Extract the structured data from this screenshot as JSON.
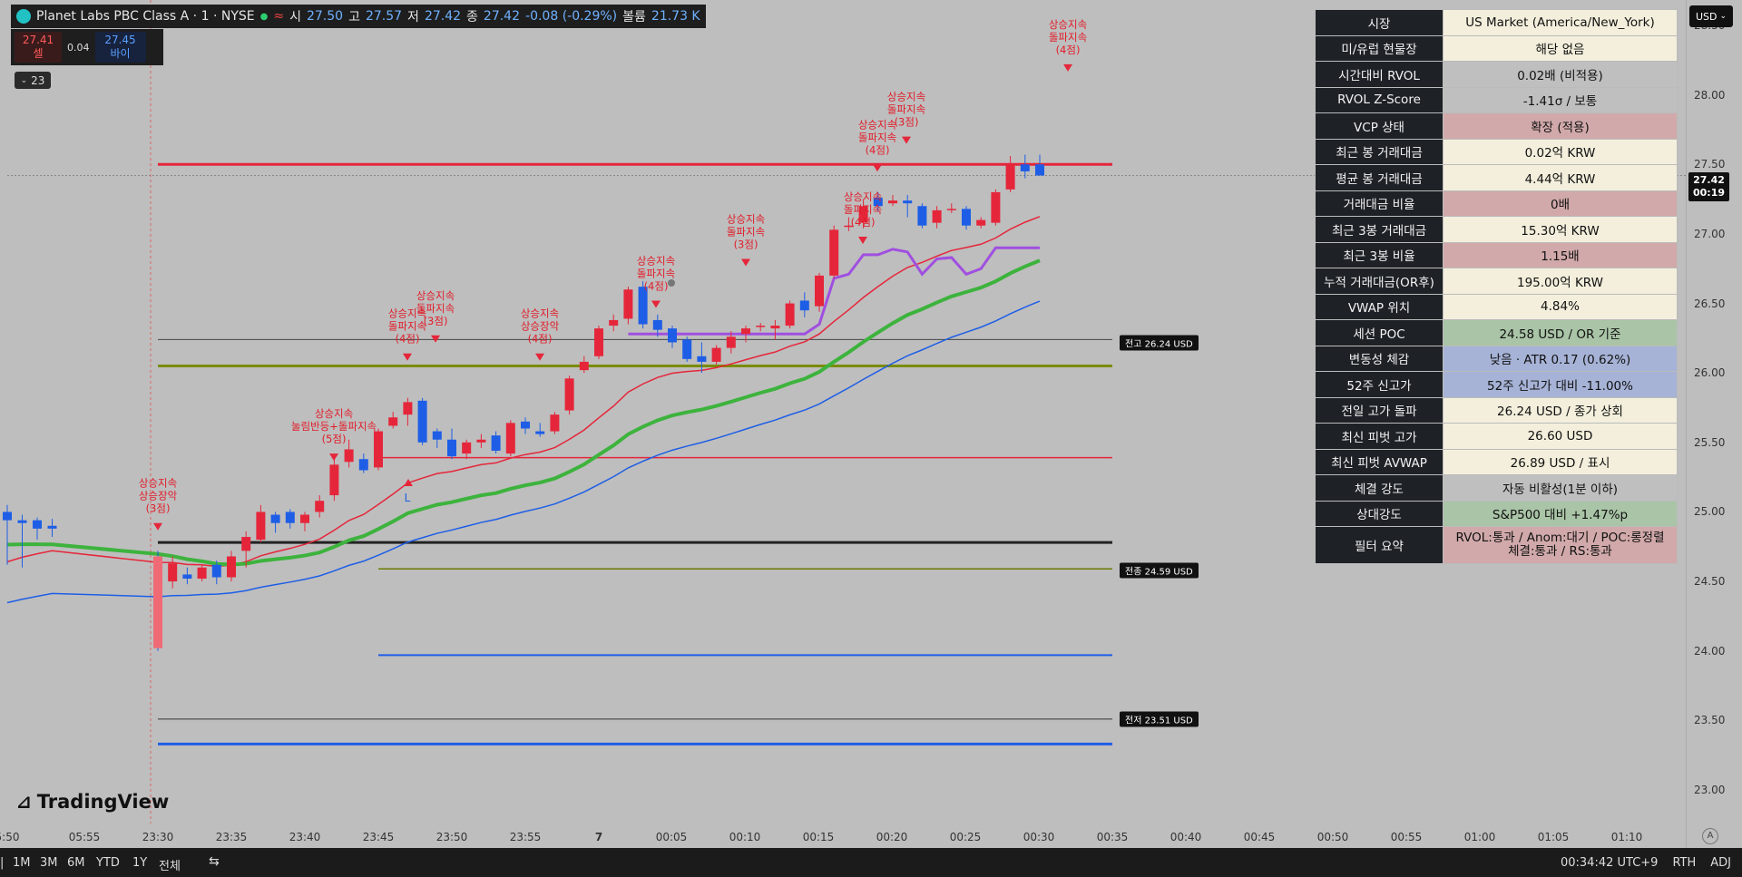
{
  "header": {
    "symbol": "Planet Labs PBC Class A · 1 · NYSE",
    "open_label": "시",
    "open": "27.50",
    "high_label": "고",
    "high": "27.57",
    "low_label": "저",
    "low": "27.42",
    "close_label": "종",
    "close": "27.42",
    "change": "-0.08 (-0.29%)",
    "volume_label": "볼륨",
    "volume": "21.73 K"
  },
  "trade": {
    "sell_price": "27.41",
    "sell_label": "셀",
    "spread": "0.04",
    "buy_price": "27.45",
    "buy_label": "바이"
  },
  "indicator_count": "23",
  "currency": "USD",
  "current_price": {
    "value": "27.42",
    "countdown": "00:19"
  },
  "price_axis": [
    "28.50",
    "28.00",
    "27.50",
    "27.00",
    "26.50",
    "26.00",
    "25.50",
    "25.00",
    "24.50",
    "24.00",
    "23.50",
    "23.00"
  ],
  "time_axis": [
    "5:50",
    "05:55",
    "23:30",
    "23:35",
    "23:40",
    "23:45",
    "23:50",
    "23:55",
    "7",
    "00:05",
    "00:10",
    "00:15",
    "00:20",
    "00:25",
    "00:30",
    "00:35",
    "00:40",
    "00:45",
    "00:50",
    "00:55",
    "01:00",
    "01:05",
    "01:10"
  ],
  "line_labels": {
    "prev_low": "전고 26.24 USD",
    "prev_close": "전종 24.59 USD",
    "prev_low2": "전저 23.51 USD"
  },
  "signals": [
    [
      "상승지속",
      "상승장악",
      "(3점)"
    ],
    [
      "상승지속",
      "눌림반등+돌파지속",
      "(5점)"
    ],
    [
      "상승지속",
      "돌파지속",
      "(4점)"
    ],
    [
      "상승지속",
      "돌파지속",
      "(3점)"
    ],
    [
      "상승지속",
      "상승장악",
      "(4점)"
    ],
    [
      "상승지속",
      "돌파지속",
      "(4점)"
    ],
    [
      "상승지속",
      "돌파지속",
      "(3점)"
    ],
    [
      "상승지속",
      "돌파지속",
      "(4점)"
    ],
    [
      "상승지속",
      "돌파지속",
      "(4점)"
    ],
    [
      "상승지속",
      "돌파지속",
      "(3점)"
    ],
    [
      "상승지속",
      "돌파지속",
      "(4점)"
    ]
  ],
  "signal_L": "L",
  "table": [
    {
      "k": "시장",
      "v": "US Market (America/New_York)",
      "c": "#f3efdc"
    },
    {
      "k": "미/유럽 현물장",
      "v": "해당 없음",
      "c": "#f3efdc"
    },
    {
      "k": "시간대비 RVOL",
      "v": "0.02배 (비적용)",
      "c": "#bfbfbf"
    },
    {
      "k": "RVOL Z-Score",
      "v": "-1.41σ / 보통",
      "c": "#bfbfbf"
    },
    {
      "k": "VCP 상태",
      "v": "확장 (적용)",
      "c": "#d1a9aa"
    },
    {
      "k": "최근 봉 거래대금",
      "v": "0.02억 KRW",
      "c": "#f3efdc"
    },
    {
      "k": "평균 봉 거래대금",
      "v": "4.44억 KRW",
      "c": "#f3efdc"
    },
    {
      "k": "거래대금 비율",
      "v": "0배",
      "c": "#d1a9aa"
    },
    {
      "k": "최근 3봉 거래대금",
      "v": "15.30억 KRW",
      "c": "#f3efdc"
    },
    {
      "k": "최근 3봉 비율",
      "v": "1.15배",
      "c": "#d1a9aa"
    },
    {
      "k": "누적 거래대금(OR후)",
      "v": "195.00억 KRW",
      "c": "#f3efdc"
    },
    {
      "k": "VWAP 위치",
      "v": "4.84%",
      "c": "#f3efdc"
    },
    {
      "k": "세션 POC",
      "v": "24.58 USD / OR 기준",
      "c": "#a9c4a6"
    },
    {
      "k": "변동성 체감",
      "v": "낮음 · ATR 0.17 (0.62%)",
      "c": "#a6b3d6"
    },
    {
      "k": "52주 신고가",
      "v": "52주 신고가 대비 -11.00%",
      "c": "#a6b3d6"
    },
    {
      "k": "전일 고가 돌파",
      "v": "26.24 USD / 종가 상회",
      "c": "#f3efdc"
    },
    {
      "k": "최신 피벗 고가",
      "v": "26.60 USD",
      "c": "#f3efdc"
    },
    {
      "k": "최신 피벗 AVWAP",
      "v": "26.89 USD / 표시",
      "c": "#f3efdc"
    },
    {
      "k": "체결 강도",
      "v": "자동 비활성(1분 이하)",
      "c": "#bfbfbf"
    },
    {
      "k": "상대강도",
      "v": "S&P500 대비 +1.47%p",
      "c": "#a9c4a6"
    }
  ],
  "filter_summary": {
    "k": "필터 요약",
    "v1": "RVOL:통과 / Anom:대기 / POC:롱정렬",
    "v2": "체결:통과 / RS:통과",
    "c": "#d1a9aa"
  },
  "tv_logo": "TradingView",
  "bottom_ranges": [
    "1M",
    "3M",
    "6M",
    "YTD",
    "1Y",
    "전체"
  ],
  "status": {
    "time": "00:34:42 UTC+9",
    "session": "RTH",
    "adj": "ADJ"
  },
  "candles": [
    [
      25.0,
      25.05,
      24.62,
      24.94
    ],
    [
      24.94,
      24.98,
      24.6,
      24.92
    ],
    [
      24.94,
      24.96,
      24.8,
      24.88
    ],
    [
      24.9,
      24.95,
      24.82,
      24.88
    ],
    [
      24.68,
      24.72,
      24.0,
      24.02
    ],
    [
      24.5,
      24.68,
      24.45,
      24.63
    ],
    [
      24.55,
      24.6,
      24.48,
      24.52
    ],
    [
      24.52,
      24.62,
      24.5,
      24.6
    ],
    [
      24.62,
      24.65,
      24.48,
      24.53
    ],
    [
      24.53,
      24.72,
      24.5,
      24.68
    ],
    [
      24.72,
      24.86,
      24.6,
      24.82
    ],
    [
      24.8,
      25.05,
      24.78,
      25.0
    ],
    [
      24.98,
      25.0,
      24.85,
      24.92
    ],
    [
      25.0,
      25.02,
      24.88,
      24.92
    ],
    [
      24.92,
      25.0,
      24.86,
      24.98
    ],
    [
      25.0,
      25.12,
      24.96,
      25.08
    ],
    [
      25.12,
      25.38,
      25.08,
      25.34
    ],
    [
      25.36,
      25.52,
      25.32,
      25.45
    ],
    [
      25.38,
      25.42,
      25.28,
      25.3
    ],
    [
      25.32,
      25.6,
      25.3,
      25.58
    ],
    [
      25.62,
      25.72,
      25.6,
      25.68
    ],
    [
      25.7,
      25.82,
      25.62,
      25.79
    ],
    [
      25.8,
      25.82,
      25.48,
      25.5
    ],
    [
      25.58,
      25.6,
      25.46,
      25.52
    ],
    [
      25.52,
      25.6,
      25.38,
      25.4
    ],
    [
      25.42,
      25.52,
      25.38,
      25.5
    ],
    [
      25.5,
      25.56,
      25.46,
      25.52
    ],
    [
      25.55,
      25.58,
      25.42,
      25.44
    ],
    [
      25.42,
      25.66,
      25.4,
      25.64
    ],
    [
      25.65,
      25.68,
      25.56,
      25.6
    ],
    [
      25.58,
      25.64,
      25.54,
      25.56
    ],
    [
      25.58,
      25.72,
      25.56,
      25.7
    ],
    [
      25.73,
      25.98,
      25.7,
      25.96
    ],
    [
      26.02,
      26.12,
      26.0,
      26.08
    ],
    [
      26.12,
      26.34,
      26.1,
      26.32
    ],
    [
      26.34,
      26.42,
      26.3,
      26.38
    ],
    [
      26.39,
      26.62,
      26.35,
      26.6
    ],
    [
      26.62,
      26.66,
      26.32,
      26.35
    ],
    [
      26.38,
      26.42,
      26.26,
      26.31
    ],
    [
      26.32,
      26.34,
      26.18,
      26.22
    ],
    [
      26.24,
      26.26,
      26.08,
      26.1
    ],
    [
      26.12,
      26.22,
      26.0,
      26.08
    ],
    [
      26.08,
      26.2,
      26.06,
      26.18
    ],
    [
      26.18,
      26.3,
      26.14,
      26.26
    ],
    [
      26.28,
      26.34,
      26.22,
      26.32
    ],
    [
      26.33,
      26.36,
      26.3,
      26.34
    ],
    [
      26.32,
      26.38,
      26.24,
      26.34
    ],
    [
      26.34,
      26.52,
      26.32,
      26.5
    ],
    [
      26.52,
      26.58,
      26.4,
      26.45
    ],
    [
      26.48,
      26.72,
      26.44,
      26.7
    ],
    [
      26.7,
      27.06,
      26.68,
      27.03
    ],
    [
      27.05,
      27.12,
      27.02,
      27.06
    ],
    [
      27.08,
      27.25,
      27.04,
      27.2
    ],
    [
      27.26,
      27.3,
      27.16,
      27.2
    ],
    [
      27.22,
      27.28,
      27.2,
      27.24
    ],
    [
      27.24,
      27.28,
      27.12,
      27.22
    ],
    [
      27.2,
      27.22,
      27.04,
      27.06
    ],
    [
      27.08,
      27.2,
      27.04,
      27.17
    ],
    [
      27.18,
      27.22,
      27.15,
      27.18
    ],
    [
      27.18,
      27.2,
      27.03,
      27.06
    ],
    [
      27.06,
      27.12,
      27.04,
      27.1
    ],
    [
      27.08,
      27.32,
      27.06,
      27.3
    ],
    [
      27.32,
      27.56,
      27.3,
      27.5
    ],
    [
      27.5,
      27.57,
      27.4,
      27.45
    ],
    [
      27.5,
      27.57,
      27.42,
      27.42
    ]
  ]
}
